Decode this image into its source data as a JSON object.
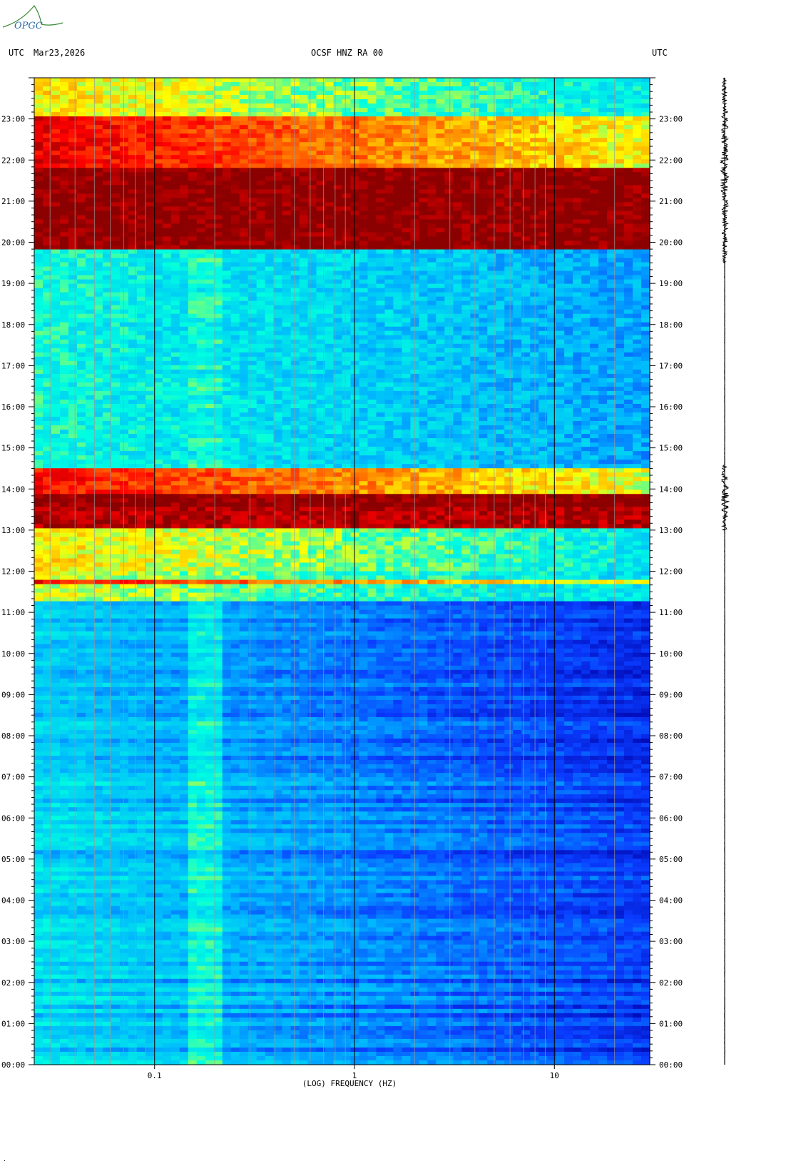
{
  "logo_text": "OPGC",
  "header": {
    "tz_left": "UTC",
    "date": "Mar23,2026",
    "station": "OCSF HNZ RA 00",
    "tz_right": "UTC"
  },
  "footer_mark": "·",
  "chart_data": {
    "type": "heatmap",
    "title": "OCSF HNZ RA 00",
    "xlabel": "(LOG) FREQUENCY (HZ)",
    "ylabel": "UTC",
    "x_scale": "log",
    "xlim": [
      0.025,
      30
    ],
    "x_ticks": [
      0.1,
      1,
      10
    ],
    "x_tick_labels": [
      "0.1",
      "1",
      "10"
    ],
    "y_ticks": [
      "00:00",
      "01:00",
      "02:00",
      "03:00",
      "04:00",
      "05:00",
      "06:00",
      "07:00",
      "08:00",
      "09:00",
      "10:00",
      "11:00",
      "12:00",
      "13:00",
      "14:00",
      "15:00",
      "16:00",
      "17:00",
      "18:00",
      "19:00",
      "20:00",
      "21:00",
      "22:00",
      "23:00"
    ],
    "ylim_hours": [
      0,
      24
    ],
    "colormap": [
      "#0000a8",
      "#0a3cff",
      "#00b4ff",
      "#00ffe0",
      "#ffff00",
      "#ff7800",
      "#ff0000",
      "#8b0000"
    ],
    "background_level_lowfreq": 0.35,
    "background_level_highfreq": 0.12,
    "activity_bands": [
      {
        "start": "11:15",
        "end": "12:00",
        "level": 0.55
      },
      {
        "start": "11:40",
        "end": "11:50",
        "level": 0.85
      },
      {
        "start": "12:00",
        "end": "13:00",
        "level": 0.6
      },
      {
        "start": "13:00",
        "end": "13:35",
        "level": 0.95
      },
      {
        "start": "13:35",
        "end": "13:55",
        "level": 1.0
      },
      {
        "start": "13:55",
        "end": "14:30",
        "level": 0.85
      },
      {
        "start": "14:30",
        "end": "19:50",
        "level": 0.42
      },
      {
        "start": "19:50",
        "end": "21:50",
        "level": 1.0
      },
      {
        "start": "21:50",
        "end": "23:05",
        "level": 0.88
      },
      {
        "start": "23:05",
        "end": "23:59",
        "level": 0.6
      }
    ],
    "seismogram_bursts": [
      {
        "start": "13:00",
        "end": "14:35"
      },
      {
        "start": "19:30",
        "end": "23:59"
      }
    ]
  }
}
